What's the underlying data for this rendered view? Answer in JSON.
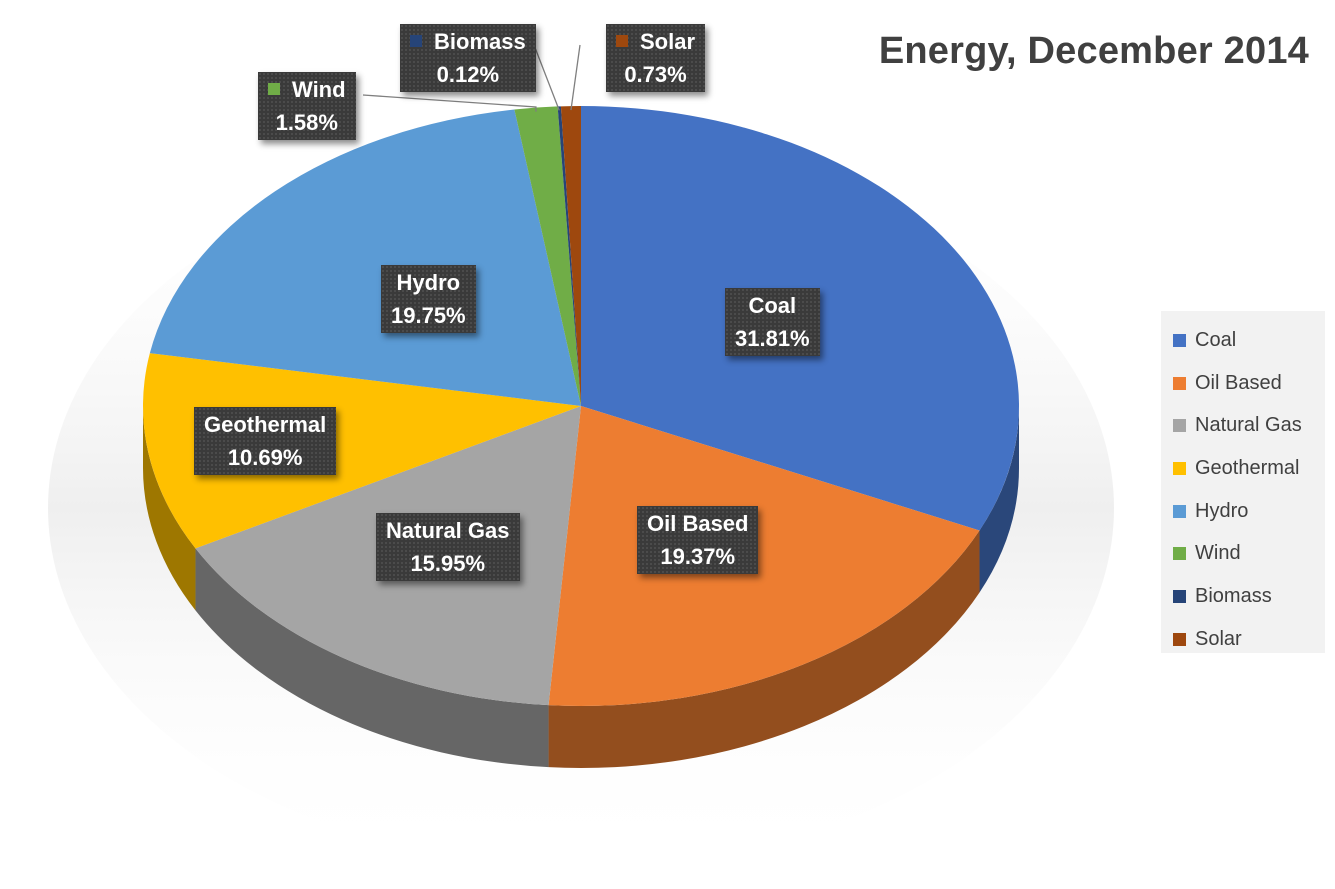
{
  "chart_data": {
    "type": "pie",
    "title": "Energy, December 2014",
    "categories": [
      "Coal",
      "Oil Based",
      "Natural Gas",
      "Geothermal",
      "Hydro",
      "Wind",
      "Biomass",
      "Solar"
    ],
    "values": [
      31.81,
      19.37,
      15.95,
      10.69,
      19.75,
      1.58,
      0.12,
      0.73
    ],
    "value_labels": [
      "31.81%",
      "19.37%",
      "15.95%",
      "10.69%",
      "19.75%",
      "1.58%",
      "0.12%",
      "0.73%"
    ],
    "colors": [
      "#4472c4",
      "#ed7d31",
      "#a5a5a5",
      "#ffc000",
      "#5b9bd5",
      "#70ad47",
      "#264478",
      "#9e480e"
    ],
    "style": "3d",
    "legend": "right"
  }
}
